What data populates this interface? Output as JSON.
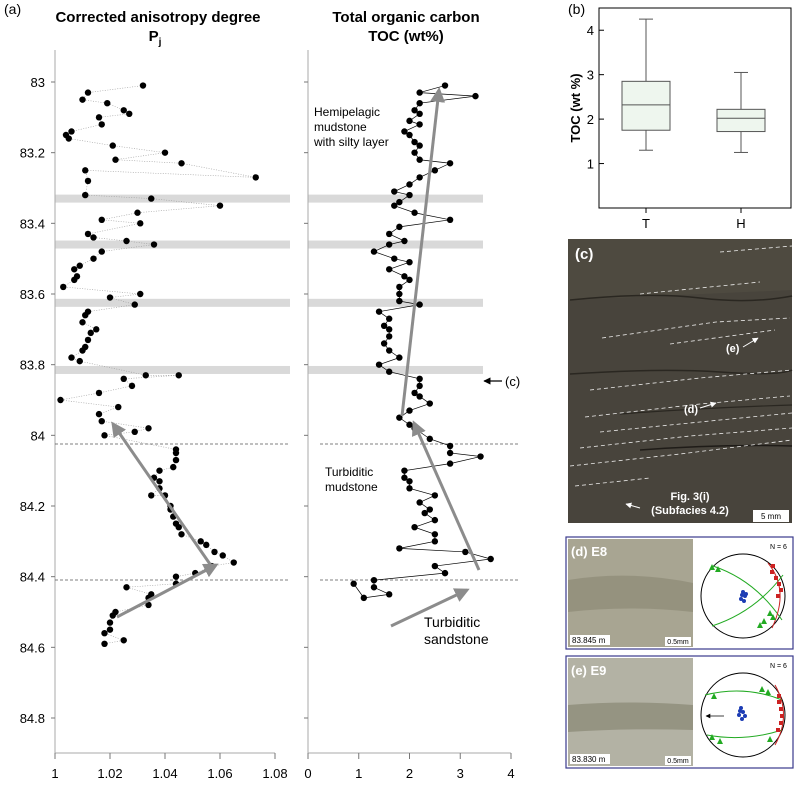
{
  "panel_a": {
    "label": "(a)",
    "depth_ticks": [
      "83",
      "83.2",
      "83.4",
      "83.6",
      "83.8",
      "84",
      "84.2",
      "84.4",
      "84.6",
      "84.8"
    ],
    "left": {
      "title_line1": "Corrected anisotropy degree",
      "title_line2": "P",
      "title_sub": "j",
      "x_ticks": [
        "1",
        "1.02",
        "1.04",
        "1.06",
        "1.08"
      ],
      "xlim": [
        1,
        1.08
      ]
    },
    "right": {
      "title_line1": "Total organic carbon",
      "title_line2": "TOC (wt%)",
      "x_ticks": [
        "0",
        "1",
        "2",
        "3",
        "4"
      ],
      "xlim": [
        0,
        4
      ]
    },
    "annotations": {
      "hemi_1": "Hemipelagic",
      "hemi_2": "mudstone",
      "hemi_3": "with silty layer",
      "turb_mud_1": "Turbiditic",
      "turb_mud_2": "mudstone",
      "turb_sand_1": "Turbiditic",
      "turb_sand_2": "sandstone",
      "c_marker": "(c)"
    }
  },
  "panel_b": {
    "label": "(b)",
    "ylabel": "TOC (wt %)",
    "y_ticks": [
      "1",
      "2",
      "3",
      "4"
    ],
    "categories": [
      "T",
      "H"
    ]
  },
  "panel_c": {
    "label": "(c)",
    "e_label": "(e)",
    "d_label": "(d)",
    "fig_ref_1": "Fig. 3(i)",
    "fig_ref_2": "(Subfacies 4.2)",
    "scale": "5 mm"
  },
  "panel_d": {
    "label": "(d) E8",
    "depth": "83.845 m",
    "scale": "0.5mm",
    "n": "N = 6"
  },
  "panel_e": {
    "label": "(e) E9",
    "depth": "83.830 m",
    "scale": "0.5mm",
    "n": "N = 6"
  },
  "chart_data": [
    {
      "type": "scatter",
      "title": "Corrected anisotropy degree Pj",
      "xlabel": "Pj",
      "ylabel": "Depth",
      "xlim": [
        1,
        1.08
      ],
      "ylim": [
        84.8,
        82.92
      ],
      "connected": true,
      "points": [
        [
          1.032,
          83.01
        ],
        [
          1.012,
          83.03
        ],
        [
          1.01,
          83.05
        ],
        [
          1.019,
          83.06
        ],
        [
          1.025,
          83.08
        ],
        [
          1.027,
          83.09
        ],
        [
          1.016,
          83.1
        ],
        [
          1.017,
          83.12
        ],
        [
          1.006,
          83.14
        ],
        [
          1.004,
          83.15
        ],
        [
          1.005,
          83.16
        ],
        [
          1.021,
          83.18
        ],
        [
          1.04,
          83.2
        ],
        [
          1.022,
          83.22
        ],
        [
          1.046,
          83.23
        ],
        [
          1.073,
          83.27
        ],
        [
          1.011,
          83.25
        ],
        [
          1.012,
          83.28
        ],
        [
          1.011,
          83.32
        ],
        [
          1.035,
          83.33
        ],
        [
          1.06,
          83.35
        ],
        [
          1.03,
          83.37
        ],
        [
          1.017,
          83.39
        ],
        [
          1.031,
          83.4
        ],
        [
          1.012,
          83.43
        ],
        [
          1.014,
          83.44
        ],
        [
          1.026,
          83.45
        ],
        [
          1.036,
          83.46
        ],
        [
          1.017,
          83.48
        ],
        [
          1.014,
          83.5
        ],
        [
          1.009,
          83.52
        ],
        [
          1.007,
          83.53
        ],
        [
          1.008,
          83.55
        ],
        [
          1.007,
          83.56
        ],
        [
          1.003,
          83.58
        ],
        [
          1.031,
          83.6
        ],
        [
          1.02,
          83.61
        ],
        [
          1.029,
          83.63
        ],
        [
          1.012,
          83.65
        ],
        [
          1.011,
          83.66
        ],
        [
          1.01,
          83.68
        ],
        [
          1.015,
          83.7
        ],
        [
          1.013,
          83.71
        ],
        [
          1.012,
          83.73
        ],
        [
          1.011,
          83.75
        ],
        [
          1.01,
          83.76
        ],
        [
          1.006,
          83.78
        ],
        [
          1.009,
          83.79
        ],
        [
          1.033,
          83.83
        ],
        [
          1.045,
          83.83
        ],
        [
          1.025,
          83.84
        ],
        [
          1.028,
          83.86
        ],
        [
          1.016,
          83.88
        ],
        [
          1.002,
          83.9
        ],
        [
          1.023,
          83.92
        ],
        [
          1.016,
          83.94
        ],
        [
          1.017,
          83.96
        ],
        [
          1.034,
          83.98
        ],
        [
          1.029,
          83.99
        ],
        [
          1.018,
          84.0
        ],
        [
          1.044,
          84.04
        ],
        [
          1.044,
          84.05
        ],
        [
          1.044,
          84.07
        ],
        [
          1.043,
          84.09
        ],
        [
          1.038,
          84.1
        ],
        [
          1.036,
          84.12
        ],
        [
          1.038,
          84.13
        ],
        [
          1.038,
          84.15
        ],
        [
          1.035,
          84.17
        ],
        [
          1.04,
          84.17
        ],
        [
          1.042,
          84.2
        ],
        [
          1.042,
          84.21
        ],
        [
          1.043,
          84.23
        ],
        [
          1.044,
          84.25
        ],
        [
          1.045,
          84.26
        ],
        [
          1.046,
          84.28
        ],
        [
          1.053,
          84.3
        ],
        [
          1.055,
          84.31
        ],
        [
          1.058,
          84.33
        ],
        [
          1.061,
          84.34
        ],
        [
          1.065,
          84.36
        ],
        [
          1.057,
          84.37
        ],
        [
          1.051,
          84.39
        ],
        [
          1.044,
          84.4
        ],
        [
          1.044,
          84.42
        ],
        [
          1.026,
          84.43
        ],
        [
          1.035,
          84.45
        ],
        [
          1.034,
          84.46
        ],
        [
          1.034,
          84.48
        ],
        [
          1.022,
          84.5
        ],
        [
          1.021,
          84.51
        ],
        [
          1.02,
          84.53
        ],
        [
          1.02,
          84.55
        ],
        [
          1.018,
          84.56
        ],
        [
          1.025,
          84.58
        ],
        [
          1.018,
          84.59
        ]
      ]
    },
    {
      "type": "line",
      "title": "Total organic carbon TOC (wt%)",
      "xlabel": "TOC (wt%)",
      "ylabel": "Depth",
      "xlim": [
        0,
        4
      ],
      "ylim": [
        84.8,
        82.92
      ],
      "points": [
        [
          2.7,
          83.01
        ],
        [
          2.2,
          83.03
        ],
        [
          3.3,
          83.04
        ],
        [
          2.2,
          83.06
        ],
        [
          2.1,
          83.08
        ],
        [
          2.2,
          83.09
        ],
        [
          2.0,
          83.11
        ],
        [
          2.2,
          83.12
        ],
        [
          1.9,
          83.14
        ],
        [
          2.0,
          83.15
        ],
        [
          2.1,
          83.17
        ],
        [
          2.2,
          83.18
        ],
        [
          2.1,
          83.2
        ],
        [
          2.2,
          83.22
        ],
        [
          2.8,
          83.23
        ],
        [
          2.5,
          83.25
        ],
        [
          2.2,
          83.27
        ],
        [
          2.0,
          83.29
        ],
        [
          1.7,
          83.31
        ],
        [
          2.0,
          83.32
        ],
        [
          1.8,
          83.34
        ],
        [
          1.7,
          83.35
        ],
        [
          2.1,
          83.37
        ],
        [
          2.8,
          83.39
        ],
        [
          1.8,
          83.41
        ],
        [
          1.6,
          83.43
        ],
        [
          1.9,
          83.45
        ],
        [
          1.6,
          83.46
        ],
        [
          1.3,
          83.48
        ],
        [
          1.7,
          83.5
        ],
        [
          2.0,
          83.51
        ],
        [
          1.6,
          83.53
        ],
        [
          1.9,
          83.55
        ],
        [
          2.0,
          83.56
        ],
        [
          1.8,
          83.58
        ],
        [
          1.8,
          83.6
        ],
        [
          1.8,
          83.62
        ],
        [
          2.2,
          83.63
        ],
        [
          1.4,
          83.65
        ],
        [
          1.6,
          83.67
        ],
        [
          1.5,
          83.69
        ],
        [
          1.6,
          83.7
        ],
        [
          1.6,
          83.72
        ],
        [
          1.5,
          83.74
        ],
        [
          1.6,
          83.76
        ],
        [
          1.8,
          83.78
        ],
        [
          1.4,
          83.8
        ],
        [
          1.6,
          83.82
        ],
        [
          2.2,
          83.84
        ],
        [
          2.2,
          83.86
        ],
        [
          2.1,
          83.88
        ],
        [
          2.2,
          83.89
        ],
        [
          2.4,
          83.91
        ],
        [
          2.0,
          83.93
        ],
        [
          1.8,
          83.95
        ],
        [
          2.0,
          83.97
        ],
        [
          2.1,
          83.98
        ],
        [
          2.4,
          84.01
        ],
        [
          2.8,
          84.03
        ],
        [
          2.8,
          84.05
        ],
        [
          3.4,
          84.06
        ],
        [
          2.8,
          84.08
        ],
        [
          1.9,
          84.1
        ],
        [
          1.9,
          84.12
        ],
        [
          2.0,
          84.13
        ],
        [
          2.0,
          84.15
        ],
        [
          2.5,
          84.17
        ],
        [
          2.2,
          84.19
        ],
        [
          2.4,
          84.21
        ],
        [
          2.3,
          84.22
        ],
        [
          2.5,
          84.24
        ],
        [
          2.1,
          84.26
        ],
        [
          2.5,
          84.28
        ],
        [
          2.5,
          84.3
        ],
        [
          1.8,
          84.32
        ],
        [
          3.1,
          84.33
        ],
        [
          3.6,
          84.35
        ],
        [
          2.5,
          84.37
        ],
        [
          2.7,
          84.39
        ],
        [
          1.3,
          84.41
        ],
        [
          1.3,
          84.43
        ],
        [
          1.6,
          84.45
        ],
        [
          1.1,
          84.46
        ],
        [
          0.9,
          84.42
        ]
      ]
    },
    {
      "type": "box",
      "title": "",
      "ylabel": "TOC (wt %)",
      "categories": [
        "T",
        "H"
      ],
      "ylim": [
        0,
        4.5
      ],
      "boxes": [
        {
          "category": "T",
          "min": 1.3,
          "q1": 1.75,
          "median": 2.32,
          "q3": 2.85,
          "max": 4.25
        },
        {
          "category": "H",
          "min": 1.25,
          "q1": 1.72,
          "median": 2.02,
          "q3": 2.22,
          "max": 3.05
        }
      ]
    }
  ],
  "colors": {
    "gray_band": "#d9d9d9",
    "arrow": "#8c8c8c",
    "box_fill": "#eef6ee",
    "photo_c": "#4e4a40",
    "stereo_red": "#cc2222",
    "stereo_green": "#22aa22",
    "stereo_blue": "#1c3cb4"
  }
}
